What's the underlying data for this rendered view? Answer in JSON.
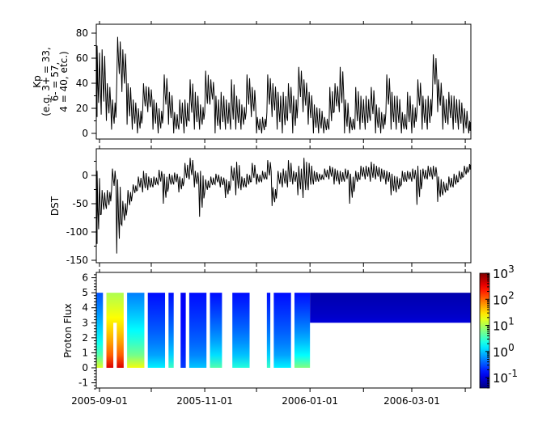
{
  "chart_data": [
    {
      "type": "line",
      "ylabel_lines": [
        "Kp",
        "(e.g. 3+ = 33,",
        "6- = 57,",
        "4 = 40, etc.)"
      ],
      "ylim": [
        0,
        85
      ],
      "yticks": [
        "0",
        "20",
        "40",
        "60",
        "80"
      ],
      "xlim": [
        "2005-08-30",
        "2006-04-04"
      ],
      "dates": [
        "2005-08-30",
        "2005-09-02",
        "2005-09-05",
        "2005-09-08",
        "2005-09-11",
        "2005-09-14",
        "2005-09-17",
        "2005-09-20",
        "2005-09-23",
        "2005-09-26",
        "2005-09-29",
        "2005-10-02",
        "2005-10-05",
        "2005-10-08",
        "2005-10-11",
        "2005-10-14",
        "2005-10-17",
        "2005-10-20",
        "2005-10-23",
        "2005-10-26",
        "2005-10-29",
        "2005-11-01",
        "2005-11-04",
        "2005-11-07",
        "2005-11-10",
        "2005-11-13",
        "2005-11-16",
        "2005-11-19",
        "2005-11-22",
        "2005-11-25",
        "2005-11-28",
        "2005-12-01",
        "2005-12-04",
        "2005-12-07",
        "2005-12-10",
        "2005-12-13",
        "2005-12-16",
        "2005-12-19",
        "2005-12-22",
        "2005-12-25",
        "2005-12-28",
        "2005-12-31",
        "2006-01-03",
        "2006-01-06",
        "2006-01-09",
        "2006-01-12",
        "2006-01-15",
        "2006-01-18",
        "2006-01-21",
        "2006-01-24",
        "2006-01-27",
        "2006-01-30",
        "2006-02-02",
        "2006-02-05",
        "2006-02-08",
        "2006-02-11",
        "2006-02-14",
        "2006-02-17",
        "2006-02-20",
        "2006-02-23",
        "2006-02-26",
        "2006-03-01",
        "2006-03-04",
        "2006-03-07",
        "2006-03-10",
        "2006-03-13",
        "2006-03-16",
        "2006-03-19",
        "2006-03-22",
        "2006-03-25",
        "2006-03-28",
        "2006-03-31",
        "2006-04-03"
      ],
      "ranges": [
        [
          13,
          70
        ],
        [
          15,
          67
        ],
        [
          10,
          40
        ],
        [
          3,
          27
        ],
        [
          40,
          77
        ],
        [
          33,
          67
        ],
        [
          7,
          40
        ],
        [
          3,
          27
        ],
        [
          0,
          20
        ],
        [
          17,
          40
        ],
        [
          17,
          37
        ],
        [
          3,
          27
        ],
        [
          0,
          20
        ],
        [
          17,
          47
        ],
        [
          7,
          33
        ],
        [
          0,
          17
        ],
        [
          3,
          27
        ],
        [
          0,
          27
        ],
        [
          10,
          43
        ],
        [
          3,
          33
        ],
        [
          3,
          23
        ],
        [
          17,
          50
        ],
        [
          23,
          43
        ],
        [
          0,
          30
        ],
        [
          3,
          33
        ],
        [
          3,
          27
        ],
        [
          3,
          43
        ],
        [
          3,
          30
        ],
        [
          3,
          23
        ],
        [
          17,
          47
        ],
        [
          13,
          37
        ],
        [
          0,
          13
        ],
        [
          0,
          13
        ],
        [
          17,
          47
        ],
        [
          13,
          40
        ],
        [
          3,
          33
        ],
        [
          0,
          33
        ],
        [
          10,
          40
        ],
        [
          0,
          30
        ],
        [
          23,
          53
        ],
        [
          17,
          43
        ],
        [
          7,
          33
        ],
        [
          0,
          23
        ],
        [
          0,
          20
        ],
        [
          0,
          13
        ],
        [
          3,
          37
        ],
        [
          17,
          40
        ],
        [
          17,
          53
        ],
        [
          0,
          27
        ],
        [
          0,
          13
        ],
        [
          3,
          37
        ],
        [
          3,
          30
        ],
        [
          3,
          30
        ],
        [
          10,
          37
        ],
        [
          0,
          23
        ],
        [
          0,
          17
        ],
        [
          17,
          47
        ],
        [
          3,
          33
        ],
        [
          3,
          30
        ],
        [
          0,
          17
        ],
        [
          3,
          33
        ],
        [
          0,
          23
        ],
        [
          17,
          43
        ],
        [
          3,
          30
        ],
        [
          3,
          30
        ],
        [
          33,
          63
        ],
        [
          17,
          43
        ],
        [
          3,
          30
        ],
        [
          7,
          33
        ],
        [
          3,
          30
        ],
        [
          3,
          27
        ],
        [
          0,
          20
        ],
        [
          0,
          10
        ]
      ]
    },
    {
      "type": "line",
      "ylabel": "DST",
      "ylim": [
        -155,
        35
      ],
      "yticks": [
        "0",
        "-50",
        "-100",
        "-150"
      ],
      "xlim": [
        "2005-08-30",
        "2006-04-04"
      ],
      "ranges": [
        [
          -121,
          8
        ],
        [
          -69,
          -26
        ],
        [
          -59,
          -26
        ],
        [
          -26,
          12
        ],
        [
          -138,
          -7
        ],
        [
          -88,
          -45
        ],
        [
          -59,
          -26
        ],
        [
          -35,
          -16
        ],
        [
          -26,
          -2
        ],
        [
          -30,
          8
        ],
        [
          -26,
          -2
        ],
        [
          -21,
          -2
        ],
        [
          -16,
          10
        ],
        [
          -50,
          3
        ],
        [
          -21,
          3
        ],
        [
          -16,
          5
        ],
        [
          -30,
          -2
        ],
        [
          -11,
          22
        ],
        [
          -7,
          31
        ],
        [
          -21,
          8
        ],
        [
          -73,
          8
        ],
        [
          -30,
          -7
        ],
        [
          -21,
          -2
        ],
        [
          -16,
          3
        ],
        [
          -21,
          -2
        ],
        [
          -40,
          -7
        ],
        [
          -16,
          17
        ],
        [
          -35,
          24
        ],
        [
          -26,
          -2
        ],
        [
          -21,
          3
        ],
        [
          -11,
          22
        ],
        [
          -16,
          3
        ],
        [
          -11,
          8
        ],
        [
          -7,
          27
        ],
        [
          -54,
          -21
        ],
        [
          -21,
          8
        ],
        [
          -21,
          12
        ],
        [
          -21,
          27
        ],
        [
          -16,
          8
        ],
        [
          -35,
          17
        ],
        [
          -40,
          31
        ],
        [
          -26,
          22
        ],
        [
          -16,
          8
        ],
        [
          -11,
          3
        ],
        [
          -7,
          12
        ],
        [
          -7,
          17
        ],
        [
          -16,
          12
        ],
        [
          -16,
          8
        ],
        [
          -11,
          12
        ],
        [
          -50,
          3
        ],
        [
          -16,
          8
        ],
        [
          -7,
          17
        ],
        [
          -7,
          17
        ],
        [
          -11,
          24
        ],
        [
          -7,
          17
        ],
        [
          -11,
          12
        ],
        [
          -16,
          8
        ],
        [
          -35,
          3
        ],
        [
          -30,
          -2
        ],
        [
          -16,
          8
        ],
        [
          -11,
          8
        ],
        [
          -11,
          12
        ],
        [
          -52,
          17
        ],
        [
          -11,
          12
        ],
        [
          -7,
          17
        ],
        [
          -7,
          17
        ],
        [
          -47,
          -2
        ],
        [
          -35,
          -11
        ],
        [
          -26,
          -2
        ],
        [
          -21,
          3
        ],
        [
          -11,
          8
        ],
        [
          -2,
          17
        ],
        [
          8,
          20
        ]
      ]
    },
    {
      "type": "heatmap",
      "ylabel": "Proton Flux",
      "ylim": [
        -1.4,
        6.4
      ],
      "yticks": [
        "-1",
        "0",
        "1",
        "2",
        "3",
        "4",
        "5",
        "6"
      ],
      "xlim": [
        "2005-08-30",
        "2006-04-04"
      ],
      "xticks": [
        "2005-09-01",
        "2005-11-01",
        "2006-01-01",
        "2006-03-01"
      ],
      "colorscale": "rainbow",
      "colorbar": {
        "scale": "log",
        "range": [
          0.04,
          1000
        ],
        "ticks": [
          {
            "base": "10",
            "exp": "3"
          },
          {
            "base": "10",
            "exp": "2"
          },
          {
            "base": "10",
            "exp": "1"
          },
          {
            "base": "10",
            "exp": "0"
          },
          {
            "base": "10",
            "exp": "-1"
          }
        ]
      },
      "intervals": [
        {
          "start": "2005-08-30",
          "end": "2005-09-03",
          "ymin": 0,
          "ymax": 5,
          "log_flux_bottom": 1.2,
          "log_flux_top": -0.5
        },
        {
          "start": "2005-09-05",
          "end": "2005-09-15",
          "ymin": 0,
          "ymax": 5,
          "log_flux_bottom": 2.6,
          "log_flux_top": 1.0
        },
        {
          "start": "2005-09-17",
          "end": "2005-09-27",
          "ymin": 0,
          "ymax": 5,
          "log_flux_bottom": 1.3,
          "log_flux_top": -0.3
        },
        {
          "start": "2005-09-29",
          "end": "2005-10-09",
          "ymin": 0,
          "ymax": 5,
          "log_flux_bottom": 0.2,
          "log_flux_top": -0.8
        },
        {
          "start": "2005-10-11",
          "end": "2005-10-14",
          "ymin": 0,
          "ymax": 5,
          "log_flux_bottom": 0.5,
          "log_flux_top": -0.8
        },
        {
          "start": "2005-10-18",
          "end": "2005-10-21",
          "ymin": 0,
          "ymax": 5,
          "log_flux_bottom": -0.6,
          "log_flux_top": -0.9
        },
        {
          "start": "2005-10-23",
          "end": "2005-11-02",
          "ymin": 0,
          "ymax": 5,
          "log_flux_bottom": 0.0,
          "log_flux_top": -0.8
        },
        {
          "start": "2005-11-04",
          "end": "2005-11-11",
          "ymin": 0,
          "ymax": 5,
          "log_flux_bottom": 0.6,
          "log_flux_top": -0.8
        },
        {
          "start": "2005-11-17",
          "end": "2005-11-27",
          "ymin": 0,
          "ymax": 5,
          "log_flux_bottom": 0.4,
          "log_flux_top": -0.8
        },
        {
          "start": "2005-12-07",
          "end": "2005-12-09",
          "ymin": 0,
          "ymax": 5,
          "log_flux_bottom": 0.5,
          "log_flux_top": -0.8
        },
        {
          "start": "2005-12-11",
          "end": "2005-12-21",
          "ymin": 0,
          "ymax": 5,
          "log_flux_bottom": 0.2,
          "log_flux_top": -0.8
        },
        {
          "start": "2005-12-23",
          "end": "2006-01-01",
          "ymin": 0,
          "ymax": 5,
          "log_flux_bottom": 0.8,
          "log_flux_top": -0.8
        },
        {
          "start": "2006-01-01",
          "end": "2006-04-04",
          "ymin": 3,
          "ymax": 5,
          "log_flux_bottom": -1.0,
          "log_flux_top": -1.2
        }
      ],
      "gaps": [
        {
          "start": "2005-09-09",
          "end": "2005-09-11",
          "ymin": 0,
          "ymax": 3
        }
      ]
    }
  ]
}
